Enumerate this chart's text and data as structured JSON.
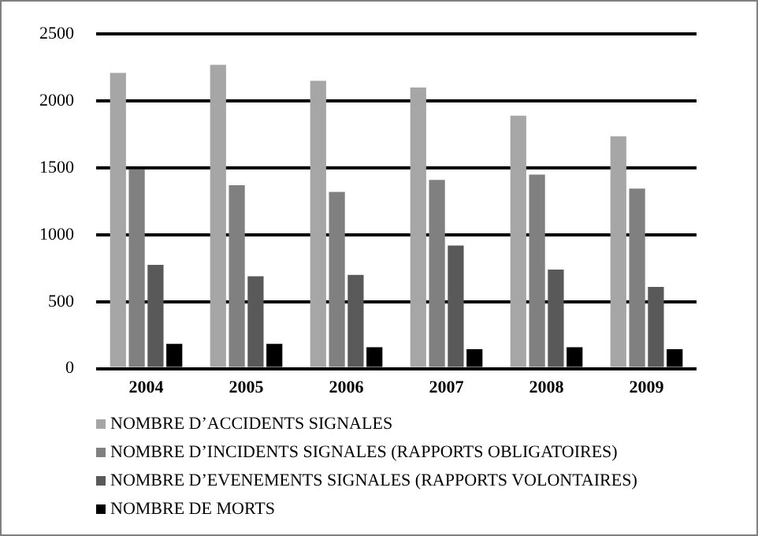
{
  "chart_data": {
    "type": "bar",
    "categories": [
      "2004",
      "2005",
      "2006",
      "2007",
      "2008",
      "2009"
    ],
    "series": [
      {
        "name": "NOMBRE D’ACCIDENTS SIGNALES",
        "color": "#a6a6a6",
        "values": [
          2210,
          2270,
          2150,
          2100,
          1890,
          1735
        ]
      },
      {
        "name": "NOMBRE D’INCIDENTS SIGNALES (RAPPORTS OBLIGATOIRES)",
        "color": "#808080",
        "values": [
          1490,
          1370,
          1320,
          1410,
          1450,
          1345
        ]
      },
      {
        "name": "NOMBRE D’EVENEMENTS SIGNALES (RAPPORTS VOLONTAIRES)",
        "color": "#595959",
        "values": [
          775,
          690,
          700,
          920,
          740,
          610
        ]
      },
      {
        "name": "NOMBRE DE MORTS",
        "color": "#000000",
        "values": [
          185,
          185,
          160,
          145,
          160,
          145
        ]
      }
    ],
    "ylim": [
      0,
      2500
    ],
    "yticks": [
      0,
      500,
      1000,
      1500,
      2000,
      2500
    ],
    "grid": "y",
    "legend": "bottom"
  }
}
